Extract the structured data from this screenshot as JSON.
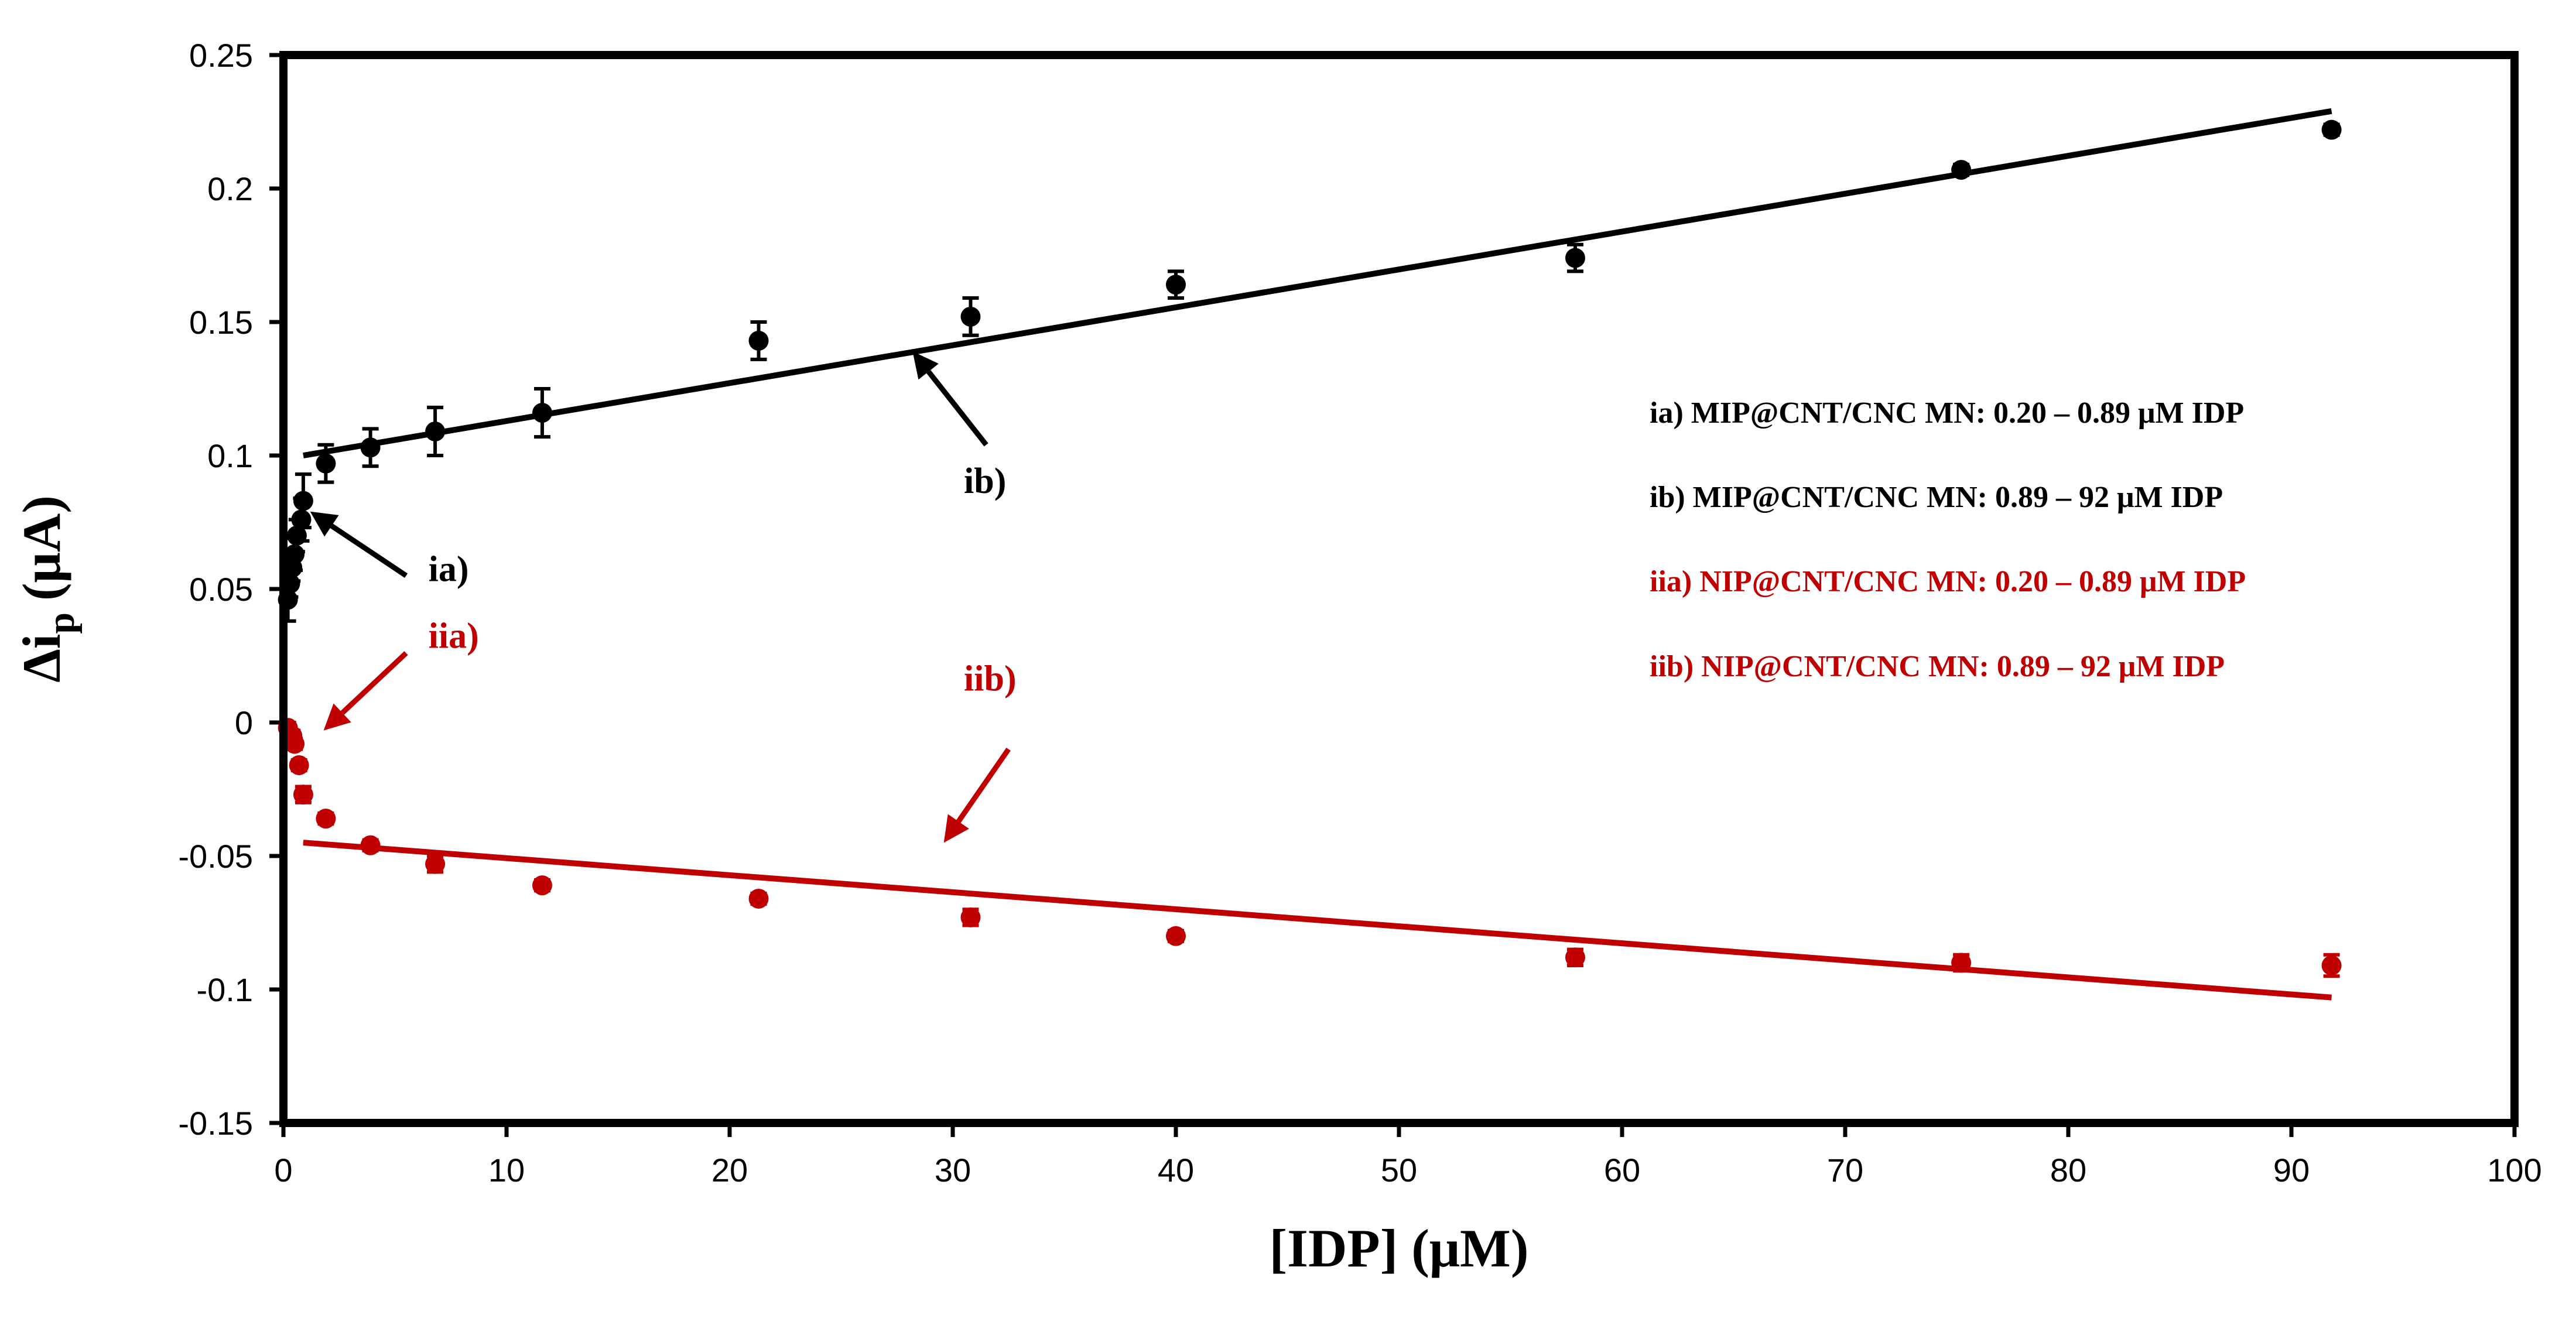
{
  "chart_data": {
    "type": "scatter",
    "title": "",
    "xlabel": "[IDP] (μM)",
    "ylabel_main": "Δi",
    "ylabel_sub": "p",
    "ylabel_unit": "(μA)",
    "xlim": [
      0,
      100
    ],
    "ylim": [
      -0.15,
      0.25
    ],
    "x_ticks": [
      0,
      10,
      20,
      30,
      40,
      50,
      60,
      70,
      80,
      90,
      100
    ],
    "x_tick_labels": [
      "0",
      "10",
      "20",
      "30",
      "40",
      "50",
      "60",
      "70",
      "80",
      "90",
      "100"
    ],
    "y_ticks": [
      -0.15,
      -0.1,
      -0.05,
      0,
      0.05,
      0.1,
      0.15,
      0.2,
      0.25
    ],
    "y_tick_labels": [
      "-0.15",
      "-0.1",
      "-0.05",
      "0",
      "0.05",
      "0.1",
      "0.15",
      "0.2",
      "0.25"
    ],
    "grid": false,
    "series": [
      {
        "name": "MIP@CNT/CNC MN",
        "color": "#000000",
        "points": [
          {
            "x": 0.2,
            "y": 0.046,
            "err": 0.008
          },
          {
            "x": 0.3,
            "y": 0.052,
            "err": 0.005
          },
          {
            "x": 0.4,
            "y": 0.058,
            "err": 0.005
          },
          {
            "x": 0.5,
            "y": 0.063,
            "err": 0.006
          },
          {
            "x": 0.6,
            "y": 0.07,
            "err": 0.006
          },
          {
            "x": 0.8,
            "y": 0.076,
            "err": 0.008
          },
          {
            "x": 0.89,
            "y": 0.083,
            "err": 0.01
          },
          {
            "x": 1.9,
            "y": 0.097,
            "err": 0.007
          },
          {
            "x": 3.9,
            "y": 0.103,
            "err": 0.007
          },
          {
            "x": 6.8,
            "y": 0.109,
            "err": 0.009
          },
          {
            "x": 11.6,
            "y": 0.116,
            "err": 0.009
          },
          {
            "x": 21.3,
            "y": 0.143,
            "err": 0.007
          },
          {
            "x": 30.8,
            "y": 0.152,
            "err": 0.007
          },
          {
            "x": 40.0,
            "y": 0.164,
            "err": 0.005
          },
          {
            "x": 57.9,
            "y": 0.174,
            "err": 0.005
          },
          {
            "x": 75.2,
            "y": 0.207,
            "err": 0.002
          },
          {
            "x": 91.8,
            "y": 0.222,
            "err": 0.002
          }
        ],
        "fit": {
          "x": [
            0.89,
            91.8
          ],
          "y": [
            0.1,
            0.229
          ]
        }
      },
      {
        "name": "NIP@CNT/CNC MN",
        "color": "#c00000",
        "points": [
          {
            "x": 0.2,
            "y": -0.002,
            "err": 0.002
          },
          {
            "x": 0.4,
            "y": -0.005,
            "err": 0.002
          },
          {
            "x": 0.5,
            "y": -0.008,
            "err": 0.002
          },
          {
            "x": 0.7,
            "y": -0.016,
            "err": 0.002
          },
          {
            "x": 0.89,
            "y": -0.027,
            "err": 0.003
          },
          {
            "x": 1.9,
            "y": -0.036,
            "err": 0.002
          },
          {
            "x": 3.9,
            "y": -0.046,
            "err": 0.002
          },
          {
            "x": 6.8,
            "y": -0.053,
            "err": 0.003
          },
          {
            "x": 11.6,
            "y": -0.061,
            "err": 0.002
          },
          {
            "x": 21.3,
            "y": -0.066,
            "err": 0.002
          },
          {
            "x": 30.8,
            "y": -0.073,
            "err": 0.003
          },
          {
            "x": 40.0,
            "y": -0.08,
            "err": 0.002
          },
          {
            "x": 57.9,
            "y": -0.088,
            "err": 0.003
          },
          {
            "x": 75.2,
            "y": -0.09,
            "err": 0.003
          },
          {
            "x": 91.8,
            "y": -0.091,
            "err": 0.004
          }
        ],
        "fit": {
          "x": [
            0.89,
            91.8
          ],
          "y": [
            -0.045,
            -0.103
          ]
        }
      }
    ],
    "annotations": [
      {
        "text": "ia)",
        "color": "#000000",
        "at": [
          6.5,
          0.053
        ],
        "arrow_from": [
          5.5,
          0.055
        ],
        "arrow_to": [
          1.2,
          0.079
        ]
      },
      {
        "text": "ib)",
        "color": "#000000",
        "at": [
          30.5,
          0.086
        ],
        "arrow_from": [
          31.5,
          0.104
        ],
        "arrow_to": [
          28.2,
          0.139
        ]
      },
      {
        "text": "iia)",
        "color": "#c00000",
        "at": [
          6.5,
          0.028
        ],
        "arrow_from": [
          5.5,
          0.026
        ],
        "arrow_to": [
          1.8,
          -0.003
        ]
      },
      {
        "text": "iib)",
        "color": "#c00000",
        "at": [
          30.5,
          0.012
        ],
        "arrow_from": [
          32.5,
          -0.01
        ],
        "arrow_to": [
          29.6,
          -0.045
        ]
      }
    ],
    "legend": {
      "position": "right",
      "entries": [
        {
          "text": "ia) MIP@CNT/CNC MN: 0.20 – 0.89 μM IDP",
          "color": "#000000"
        },
        {
          "text": "ib) MIP@CNT/CNC MN: 0.89 – 92 μM IDP",
          "color": "#000000"
        },
        {
          "text": "iia) NIP@CNT/CNC MN: 0.20 – 0.89 μM IDP",
          "color": "#c00000"
        },
        {
          "text": "iib) NIP@CNT/CNC MN: 0.89 – 92 μM IDP",
          "color": "#c00000"
        }
      ]
    }
  }
}
